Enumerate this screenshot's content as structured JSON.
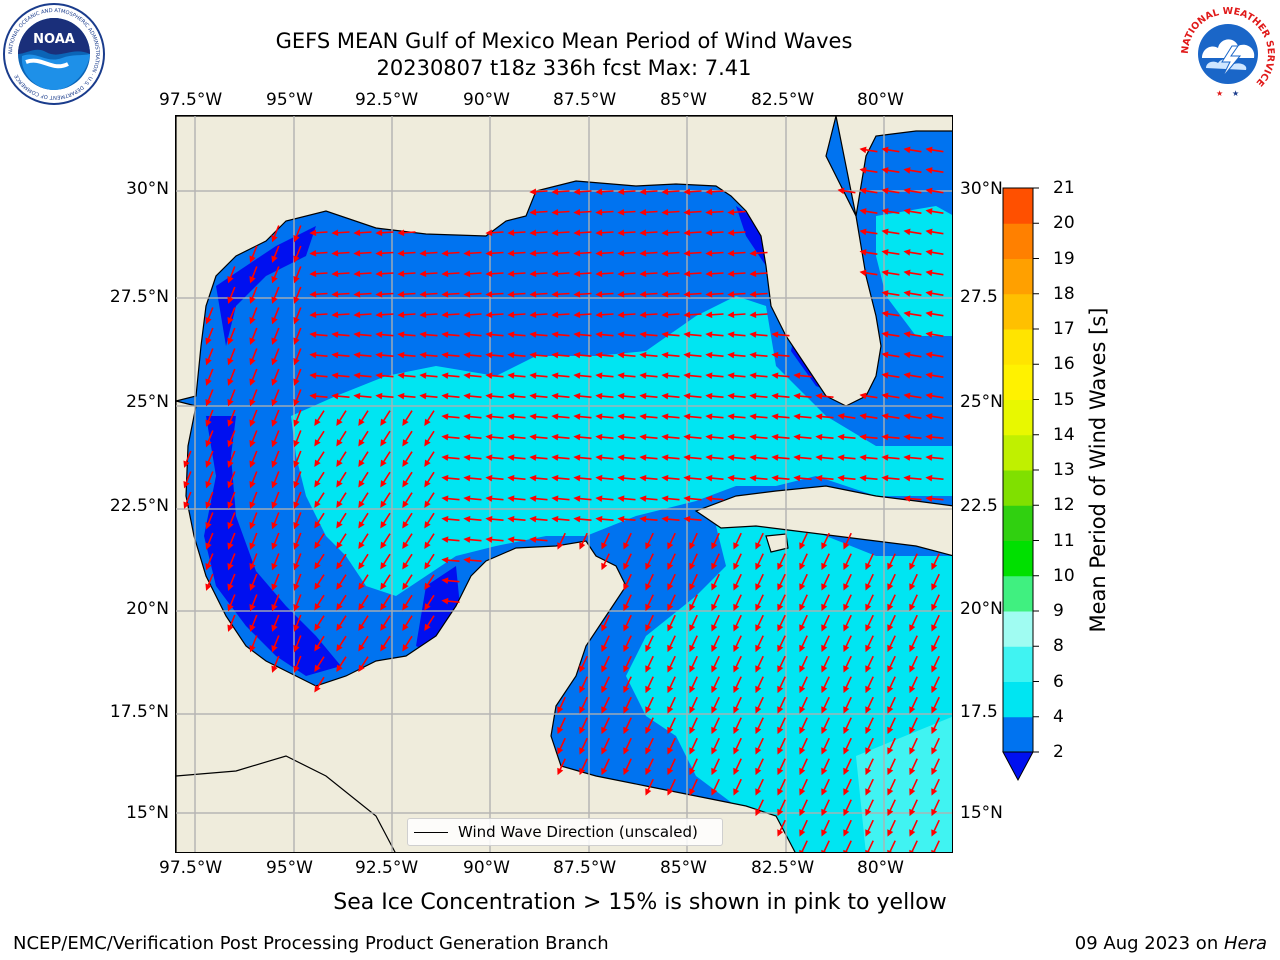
{
  "title": {
    "line1": "GEFS MEAN Gulf of Mexico Mean Period of Wind Waves",
    "line2": "20230807 t18z 336h fcst   Max: 7.41"
  },
  "axes": {
    "lon_ticks": [
      "97.5°W",
      "95°W",
      "92.5°W",
      "90°W",
      "87.5°W",
      "85°W",
      "82.5°W",
      "80°W"
    ],
    "lat_ticks_left": [
      "30°N",
      "27.5°N",
      "25°N",
      "22.5°N",
      "20°N",
      "17.5°N",
      "15°N"
    ],
    "lat_ticks_right": [
      "30°N",
      "27.5",
      "25°N",
      "22.5",
      "20°N",
      "17.5",
      "15°N"
    ],
    "lon_range": [
      -98,
      -78.3
    ],
    "lat_range": [
      14,
      31.8
    ]
  },
  "legend": {
    "label": "Wind Wave Direction (unscaled)"
  },
  "colorbar": {
    "label": "Mean Period of Wind Waves [s]",
    "ticks": [
      "21",
      "20",
      "19",
      "18",
      "17",
      "16",
      "15",
      "14",
      "13",
      "12",
      "11",
      "10",
      "9",
      "8",
      "6",
      "4",
      "2"
    ],
    "colors": [
      "#0073f0",
      "#00e5f2",
      "#40f3f2",
      "#a0fcf2",
      "#40f080",
      "#00e000",
      "#30d010",
      "#80e000",
      "#c0f000",
      "#e8f800",
      "#fff200",
      "#ffe400",
      "#ffc000",
      "#ffa000",
      "#ff8000",
      "#ff5000",
      "#ff2800",
      "#ff0000"
    ],
    "extend_color": "#0010f0"
  },
  "footer": {
    "note": "Sea Ice Concentration > 15% is shown in pink to yellow",
    "credit": "NCEP/EMC/Verification Post Processing Product Generation Branch",
    "date_prefix": "09 Aug 2023 on ",
    "machine": "Hera"
  },
  "logos": {
    "noaa_text": "NOAA",
    "noaa_ring": "NATIONAL OCEANIC AND ATMOSPHERIC ADMINISTRATION · U.S. DEPARTMENT OF COMMERCE",
    "nws_ring": "NATIONAL WEATHER SERVICE"
  },
  "map_colors": {
    "land": "#efecdc",
    "ocean_2_4": "#0073f0",
    "ocean_4_6": "#00e5f2",
    "ocean_lt2": "#0010f0",
    "arrow": "#ff0000",
    "grid": "#b0b0b0"
  }
}
